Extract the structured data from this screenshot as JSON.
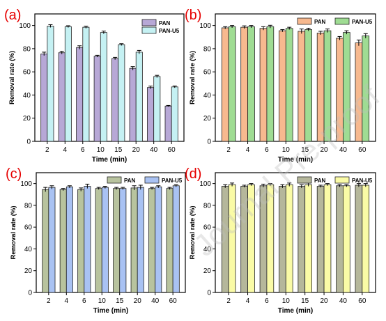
{
  "watermark": "Journal Pre-proof",
  "chart_data": [
    {
      "panel_label": "(a)",
      "type": "bar",
      "categories": [
        "2",
        "4",
        "6",
        "10",
        "15",
        "20",
        "40",
        "60"
      ],
      "xlabel": "Time (min)",
      "ylabel": "Removal rate (%)",
      "ylim": [
        0,
        110
      ],
      "yticks": [
        0,
        20,
        40,
        60,
        80,
        100
      ],
      "legend_position": "top-right",
      "series": [
        {
          "name": "PAN",
          "color": "#b7a8d6",
          "values": [
            75.5,
            76.5,
            81,
            73.5,
            71.5,
            63,
            46.5,
            30.5
          ],
          "errors": [
            1.5,
            1.2,
            1.5,
            0.8,
            1.0,
            1.5,
            1.2,
            0.5
          ]
        },
        {
          "name": "PAN-U5",
          "color": "#c5f1f3",
          "values": [
            99.5,
            99,
            98.5,
            94,
            83.5,
            77,
            56,
            47
          ],
          "errors": [
            1.2,
            0.8,
            1.0,
            1.2,
            0.8,
            1.5,
            1.0,
            0.8
          ]
        }
      ]
    },
    {
      "panel_label": "(b)",
      "type": "bar",
      "categories": [
        "2",
        "4",
        "6",
        "10",
        "15",
        "20",
        "40",
        "60"
      ],
      "xlabel": "Time (min)",
      "ylabel": "Removal rate (%)",
      "ylim": [
        0,
        110
      ],
      "yticks": [
        0,
        20,
        40,
        60,
        80,
        100
      ],
      "legend_position": "top-right",
      "series": [
        {
          "name": "PAN",
          "color": "#f7b98f",
          "values": [
            98,
            98.5,
            97.5,
            95.5,
            95,
            93.5,
            89,
            85
          ],
          "errors": [
            1.0,
            1.2,
            1.5,
            1.0,
            2.0,
            1.5,
            1.5,
            2.5
          ]
        },
        {
          "name": "PAN-U5",
          "color": "#9fdc93",
          "values": [
            99,
            99,
            99,
            97.5,
            96.5,
            95.5,
            94,
            91
          ],
          "errors": [
            1.0,
            1.0,
            1.2,
            1.0,
            1.2,
            1.5,
            1.5,
            2.0
          ]
        }
      ]
    },
    {
      "panel_label": "(c)",
      "type": "bar",
      "categories": [
        "2",
        "4",
        "6",
        "10",
        "15",
        "20",
        "40",
        "60"
      ],
      "xlabel": "Time (min)",
      "ylabel": "Removal rate (%)",
      "ylim": [
        0,
        110
      ],
      "yticks": [
        0,
        20,
        40,
        60,
        80,
        100
      ],
      "legend_position": "top-right",
      "series": [
        {
          "name": "PAN",
          "color": "#b8c39e",
          "values": [
            94.5,
            94.5,
            94.5,
            95.5,
            95.5,
            96,
            95.5,
            95.5
          ],
          "errors": [
            2.0,
            1.0,
            1.5,
            1.0,
            1.0,
            2.0,
            1.0,
            1.0
          ]
        },
        {
          "name": "PAN-U5",
          "color": "#a9c2f3",
          "values": [
            96.5,
            97,
            97.5,
            96.5,
            95.5,
            96.5,
            97,
            98
          ],
          "errors": [
            1.5,
            1.0,
            2.0,
            1.0,
            1.0,
            2.0,
            1.0,
            1.0
          ]
        }
      ]
    },
    {
      "panel_label": "(d)",
      "type": "bar",
      "categories": [
        "2",
        "4",
        "6",
        "10",
        "15",
        "20",
        "40",
        "60"
      ],
      "xlabel": "Time (min)",
      "ylabel": "Removal rate (%)",
      "ylim": [
        0,
        110
      ],
      "yticks": [
        0,
        20,
        40,
        60,
        80,
        100
      ],
      "legend_position": "top-right",
      "series": [
        {
          "name": "PAN",
          "color": "#b5b79b",
          "values": [
            97.5,
            97.5,
            98,
            97.5,
            97.5,
            97.5,
            98,
            98.5
          ],
          "errors": [
            1.5,
            1.0,
            1.5,
            1.5,
            1.5,
            1.0,
            1.0,
            1.5
          ]
        },
        {
          "name": "PAN-U5",
          "color": "#fafba6",
          "values": [
            99,
            99,
            99,
            99,
            99,
            99,
            98,
            98.5
          ],
          "errors": [
            1.5,
            1.0,
            1.0,
            1.5,
            1.5,
            1.0,
            1.0,
            1.5
          ]
        }
      ]
    }
  ]
}
